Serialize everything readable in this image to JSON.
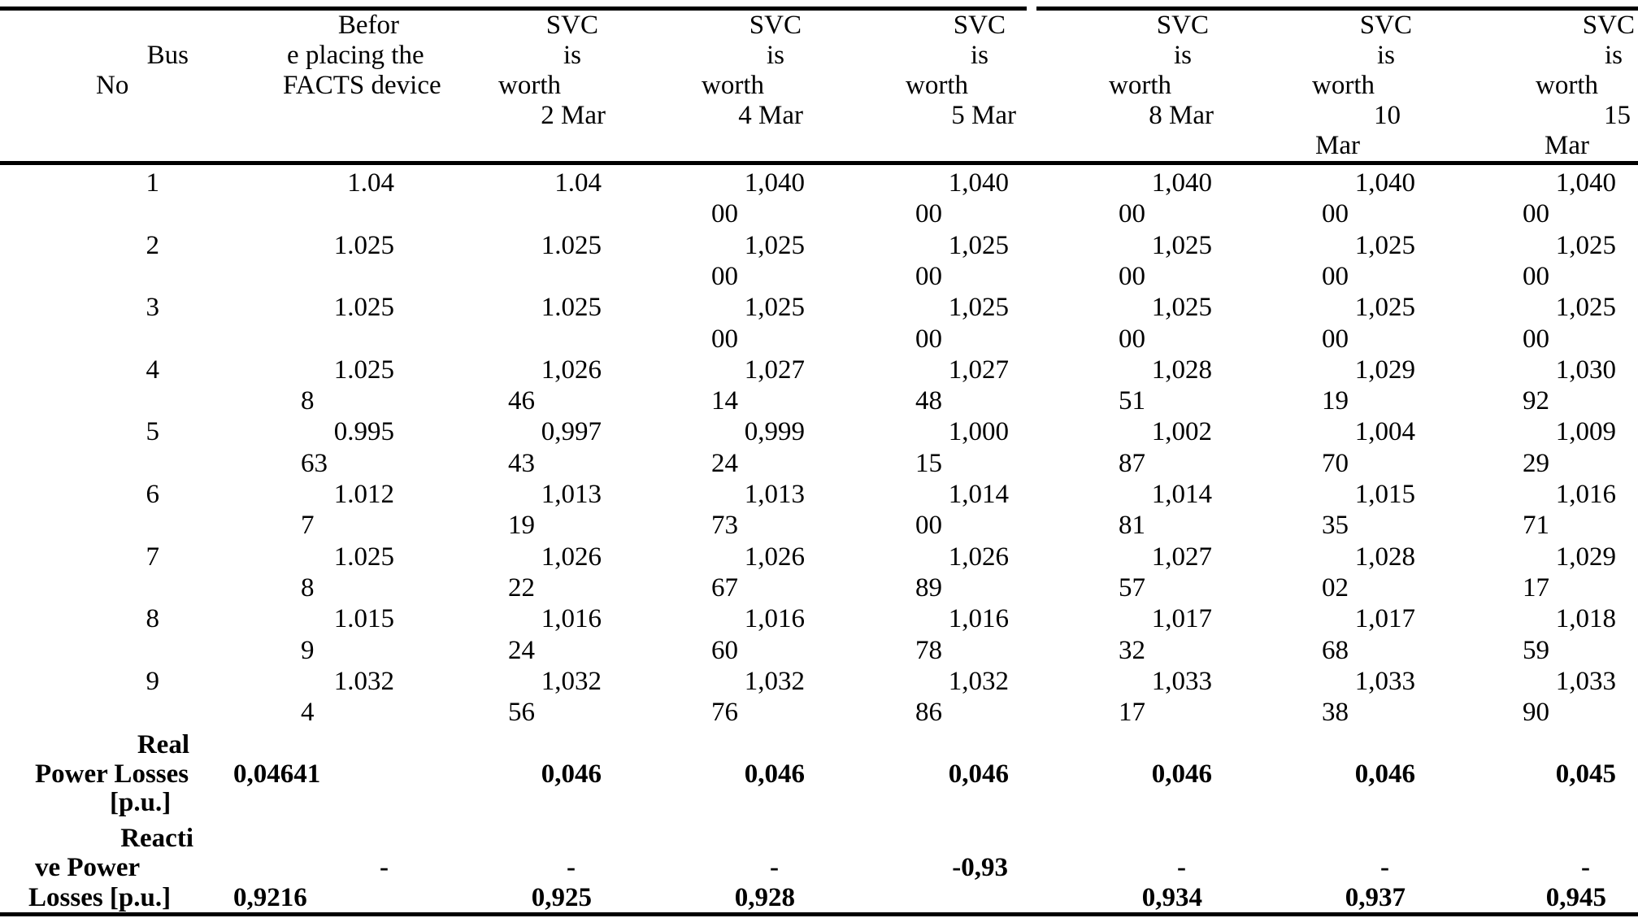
{
  "page": {
    "background": "#ffffff",
    "text_color": "#000000"
  },
  "table": {
    "header": {
      "bus_col": {
        "line1": "Bus",
        "line2": "No"
      },
      "before_col": {
        "line1": "Befor",
        "line2": "e placing the",
        "line3": "FACTS device"
      },
      "svc_cols": [
        {
          "l1": "SVC",
          "l2": "is",
          "l3": "worth",
          "l4": "2 Mar",
          "l5": ""
        },
        {
          "l1": "SVC",
          "l2": "is",
          "l3": "worth",
          "l4": "4 Mar",
          "l5": ""
        },
        {
          "l1": "SVC",
          "l2": "is",
          "l3": "worth",
          "l4": "5 Mar",
          "l5": ""
        },
        {
          "l1": "SVC",
          "l2": "is",
          "l3": "worth",
          "l4": "8 Mar",
          "l5": ""
        },
        {
          "l1": "SVC",
          "l2": "is",
          "l3": "worth",
          "l4": "10",
          "l5": "Mar"
        },
        {
          "l1": "SVC",
          "l2": "is",
          "l3": "worth",
          "l4": "15",
          "l5": "Mar"
        }
      ]
    },
    "rows": [
      {
        "bus": "1",
        "cells": [
          [
            "1.04",
            ""
          ],
          [
            "1.04",
            ""
          ],
          [
            "1,040",
            "00"
          ],
          [
            "1,040",
            "00"
          ],
          [
            "1,040",
            "00"
          ],
          [
            "1,040",
            "00"
          ],
          [
            "1,040",
            "00"
          ]
        ]
      },
      {
        "bus": "2",
        "cells": [
          [
            "1.025",
            ""
          ],
          [
            "1.025",
            ""
          ],
          [
            "1,025",
            "00"
          ],
          [
            "1,025",
            "00"
          ],
          [
            "1,025",
            "00"
          ],
          [
            "1,025",
            "00"
          ],
          [
            "1,025",
            "00"
          ]
        ]
      },
      {
        "bus": "3",
        "cells": [
          [
            "1.025",
            ""
          ],
          [
            "1.025",
            ""
          ],
          [
            "1,025",
            "00"
          ],
          [
            "1,025",
            "00"
          ],
          [
            "1,025",
            "00"
          ],
          [
            "1,025",
            "00"
          ],
          [
            "1,025",
            "00"
          ]
        ]
      },
      {
        "bus": "4",
        "cells": [
          [
            "1.025",
            "8"
          ],
          [
            "1,026",
            "46"
          ],
          [
            "1,027",
            "14"
          ],
          [
            "1,027",
            "48"
          ],
          [
            "1,028",
            "51"
          ],
          [
            "1,029",
            "19"
          ],
          [
            "1,030",
            "92"
          ]
        ]
      },
      {
        "bus": "5",
        "cells": [
          [
            "0.995",
            "63"
          ],
          [
            "0,997",
            "43"
          ],
          [
            "0,999",
            "24"
          ],
          [
            "1,000",
            "15"
          ],
          [
            "1,002",
            "87"
          ],
          [
            "1,004",
            "70"
          ],
          [
            "1,009",
            "29"
          ]
        ]
      },
      {
        "bus": "6",
        "cells": [
          [
            "1.012",
            "7"
          ],
          [
            "1,013",
            "19"
          ],
          [
            "1,013",
            "73"
          ],
          [
            "1,014",
            "00"
          ],
          [
            "1,014",
            "81"
          ],
          [
            "1,015",
            "35"
          ],
          [
            "1,016",
            "71"
          ]
        ]
      },
      {
        "bus": "7",
        "cells": [
          [
            "1.025",
            "8"
          ],
          [
            "1,026",
            "22"
          ],
          [
            "1,026",
            "67"
          ],
          [
            "1,026",
            "89"
          ],
          [
            "1,027",
            "57"
          ],
          [
            "1,028",
            "02"
          ],
          [
            "1,029",
            "17"
          ]
        ]
      },
      {
        "bus": "8",
        "cells": [
          [
            "1.015",
            "9"
          ],
          [
            "1,016",
            "24"
          ],
          [
            "1,016",
            "60"
          ],
          [
            "1,016",
            "78"
          ],
          [
            "1,017",
            "32"
          ],
          [
            "1,017",
            "68"
          ],
          [
            "1,018",
            "59"
          ]
        ]
      },
      {
        "bus": "9",
        "cells": [
          [
            "1.032",
            "4"
          ],
          [
            "1,032",
            "56"
          ],
          [
            "1,032",
            "76"
          ],
          [
            "1,032",
            "86"
          ],
          [
            "1,033",
            "17"
          ],
          [
            "1,033",
            "38"
          ],
          [
            "1,033",
            "90"
          ]
        ]
      }
    ],
    "real_power_row": {
      "label": [
        "Real",
        "Power Losses",
        "[p.u.]"
      ],
      "values": [
        "0,04641",
        "0,046",
        "0,046",
        "0,046",
        "0,046",
        "0,046",
        "0,045"
      ]
    },
    "reactive_power_row": {
      "label": [
        "Reacti",
        "ve Power",
        "Losses [p.u.]"
      ],
      "dash_line": [
        "-",
        "-",
        "-",
        "-0,93",
        "-",
        "-",
        "-"
      ],
      "value_line": [
        "0,9216",
        "0,925",
        "0,928",
        "",
        "0,934",
        "0,937",
        "0,945"
      ]
    }
  }
}
